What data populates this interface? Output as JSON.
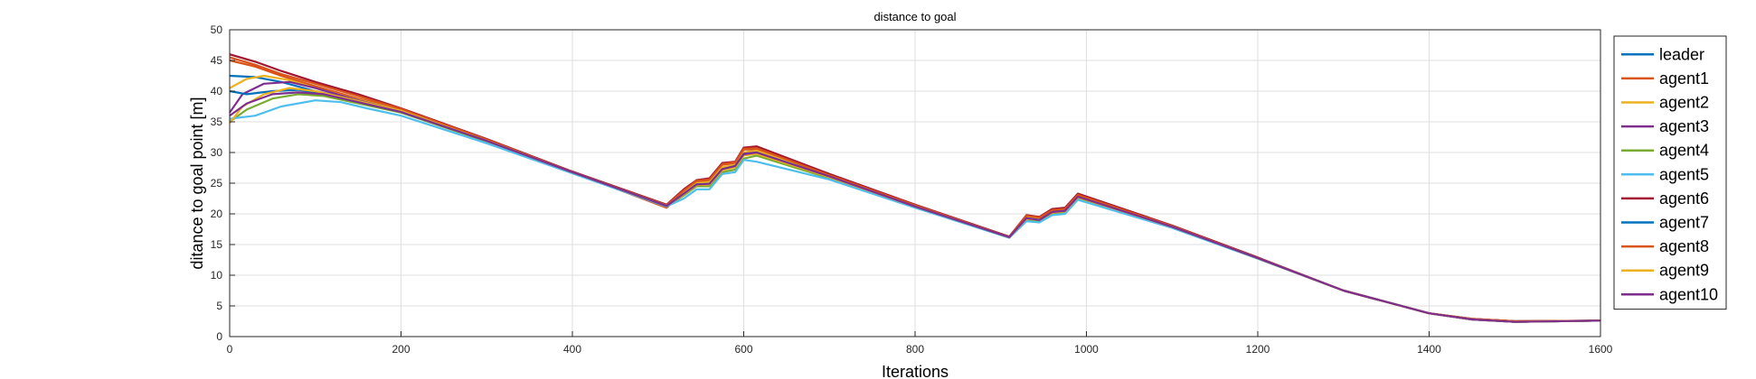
{
  "chart_data": {
    "type": "line",
    "title": "distance to goal",
    "xlabel": "Iterations",
    "ylabel": "ditance to goal point [m]",
    "xlim": [
      0,
      1600
    ],
    "ylim": [
      0,
      50
    ],
    "xticks": [
      0,
      200,
      400,
      600,
      800,
      1000,
      1200,
      1400,
      1600
    ],
    "yticks": [
      0,
      5,
      10,
      15,
      20,
      25,
      30,
      35,
      40,
      45,
      50
    ],
    "grid": true,
    "legend_position": "right-outside",
    "series": [
      {
        "name": "leader",
        "color": "#0072BD",
        "x": [
          0,
          30,
          60,
          100,
          150,
          200,
          300,
          400,
          510,
          530,
          545,
          560,
          575,
          590,
          600,
          615,
          700,
          800,
          910,
          930,
          945,
          960,
          975,
          990,
          1100,
          1200,
          1300,
          1400,
          1450,
          1500,
          1600
        ],
        "y": [
          42.5,
          42.3,
          41.5,
          40.0,
          38.5,
          36.8,
          32.0,
          26.8,
          21.3,
          23.5,
          25.0,
          25.0,
          27.5,
          28.0,
          30.0,
          30.3,
          26.2,
          21.3,
          16.2,
          19.5,
          19.2,
          20.5,
          20.7,
          23.0,
          18.0,
          12.8,
          7.5,
          3.8,
          2.9,
          2.5,
          2.6
        ]
      },
      {
        "name": "agent1",
        "color": "#D95319",
        "x": [
          0,
          30,
          60,
          100,
          150,
          200,
          300,
          400,
          510,
          530,
          545,
          560,
          575,
          590,
          600,
          615,
          700,
          800,
          910,
          930,
          945,
          960,
          975,
          990,
          1100,
          1200,
          1300,
          1400,
          1450,
          1500,
          1600
        ],
        "y": [
          45.0,
          44.0,
          42.5,
          40.8,
          38.8,
          37.0,
          32.0,
          26.8,
          21.0,
          23.5,
          25.3,
          25.5,
          28.0,
          28.3,
          30.5,
          30.5,
          26.2,
          21.3,
          16.2,
          19.6,
          19.3,
          20.5,
          20.7,
          23.0,
          18.0,
          12.8,
          7.5,
          3.8,
          2.8,
          2.4,
          2.6
        ]
      },
      {
        "name": "agent2",
        "color": "#EDB120",
        "x": [
          0,
          20,
          40,
          70,
          100,
          150,
          200,
          300,
          400,
          510,
          530,
          545,
          560,
          575,
          590,
          600,
          615,
          700,
          800,
          910,
          930,
          945,
          960,
          975,
          990,
          1100,
          1200,
          1300,
          1400,
          1450,
          1500,
          1600
        ],
        "y": [
          40.5,
          42.0,
          42.5,
          41.8,
          40.5,
          38.6,
          36.9,
          32.0,
          26.8,
          21.3,
          23.5,
          25.0,
          25.2,
          27.6,
          28.0,
          30.0,
          30.3,
          26.2,
          21.3,
          16.2,
          19.5,
          19.2,
          20.5,
          20.7,
          23.0,
          18.0,
          12.8,
          7.5,
          3.8,
          2.8,
          2.4,
          2.6
        ]
      },
      {
        "name": "agent3",
        "color": "#7E2F8E",
        "x": [
          0,
          15,
          40,
          70,
          100,
          150,
          200,
          300,
          400,
          510,
          530,
          545,
          560,
          575,
          590,
          600,
          615,
          700,
          800,
          910,
          930,
          945,
          960,
          975,
          990,
          1100,
          1200,
          1300,
          1400,
          1450,
          1500,
          1600
        ],
        "y": [
          36.5,
          39.5,
          41.2,
          41.5,
          40.5,
          38.5,
          36.8,
          32.0,
          26.8,
          21.3,
          23.2,
          24.8,
          24.8,
          27.2,
          27.8,
          29.8,
          30.0,
          26.1,
          21.2,
          16.2,
          19.3,
          19.0,
          20.3,
          20.5,
          22.8,
          17.9,
          12.8,
          7.5,
          3.8,
          2.8,
          2.4,
          2.6
        ]
      },
      {
        "name": "agent4",
        "color": "#77AC30",
        "x": [
          0,
          20,
          50,
          80,
          110,
          150,
          200,
          300,
          400,
          510,
          530,
          545,
          560,
          575,
          590,
          600,
          615,
          700,
          800,
          910,
          930,
          945,
          960,
          975,
          990,
          1100,
          1200,
          1300,
          1400,
          1450,
          1500,
          1600
        ],
        "y": [
          35.0,
          37.0,
          38.8,
          39.5,
          39.2,
          38.0,
          36.5,
          31.8,
          26.7,
          21.2,
          23.0,
          24.5,
          24.5,
          26.8,
          27.2,
          29.0,
          29.5,
          25.8,
          21.1,
          16.1,
          19.0,
          18.8,
          20.0,
          20.2,
          22.6,
          17.8,
          12.7,
          7.5,
          3.8,
          2.8,
          2.4,
          2.6
        ]
      },
      {
        "name": "agent5",
        "color": "#4DBEEE",
        "x": [
          0,
          30,
          60,
          100,
          130,
          160,
          200,
          300,
          400,
          510,
          530,
          545,
          560,
          575,
          590,
          600,
          615,
          700,
          800,
          910,
          930,
          945,
          960,
          975,
          990,
          1100,
          1200,
          1300,
          1400,
          1450,
          1500,
          1600
        ],
        "y": [
          35.5,
          36.0,
          37.5,
          38.5,
          38.2,
          37.2,
          36.0,
          31.5,
          26.6,
          21.2,
          22.5,
          24.0,
          24.0,
          26.5,
          26.8,
          28.8,
          28.5,
          25.6,
          21.0,
          16.1,
          18.8,
          18.6,
          19.8,
          20.0,
          22.3,
          17.7,
          12.7,
          7.5,
          3.8,
          2.8,
          2.4,
          2.6
        ]
      },
      {
        "name": "agent6",
        "color": "#A2142F",
        "x": [
          0,
          30,
          60,
          100,
          150,
          200,
          300,
          400,
          510,
          530,
          545,
          560,
          575,
          590,
          600,
          615,
          700,
          800,
          910,
          930,
          945,
          960,
          975,
          990,
          1100,
          1200,
          1300,
          1400,
          1450,
          1500,
          1600
        ],
        "y": [
          46.0,
          44.8,
          43.3,
          41.5,
          39.5,
          37.2,
          32.2,
          26.9,
          21.5,
          24.0,
          25.5,
          25.8,
          28.3,
          28.5,
          30.8,
          31.0,
          26.5,
          21.5,
          16.3,
          19.8,
          19.5,
          20.8,
          21.0,
          23.3,
          18.1,
          12.9,
          7.5,
          3.8,
          2.9,
          2.5,
          2.6
        ]
      },
      {
        "name": "agent7",
        "color": "#0072BD",
        "x": [
          0,
          20,
          50,
          80,
          110,
          150,
          200,
          300,
          400,
          510,
          530,
          545,
          560,
          575,
          590,
          600,
          615,
          700,
          800,
          910,
          930,
          945,
          960,
          975,
          990,
          1100,
          1200,
          1300,
          1400,
          1450,
          1500,
          1600
        ],
        "y": [
          40.0,
          39.5,
          40.0,
          40.2,
          39.5,
          38.3,
          36.7,
          31.9,
          26.8,
          21.3,
          23.3,
          24.8,
          24.9,
          27.3,
          27.8,
          29.7,
          30.0,
          26.1,
          21.2,
          16.2,
          19.3,
          19.0,
          20.3,
          20.5,
          22.8,
          17.9,
          12.8,
          7.5,
          3.8,
          2.8,
          2.4,
          2.6
        ]
      },
      {
        "name": "agent8",
        "color": "#D95319",
        "x": [
          0,
          30,
          60,
          100,
          150,
          200,
          300,
          400,
          510,
          530,
          545,
          560,
          575,
          590,
          600,
          615,
          700,
          800,
          910,
          930,
          945,
          960,
          975,
          990,
          1100,
          1200,
          1300,
          1400,
          1450,
          1500,
          1600
        ],
        "y": [
          45.5,
          44.3,
          42.8,
          41.2,
          39.2,
          37.1,
          32.1,
          26.8,
          21.4,
          23.8,
          25.4,
          25.6,
          28.1,
          28.4,
          30.6,
          30.7,
          26.3,
          21.4,
          16.2,
          19.7,
          19.4,
          20.6,
          20.8,
          23.1,
          18.0,
          12.8,
          7.5,
          3.8,
          2.9,
          2.5,
          2.6
        ]
      },
      {
        "name": "agent9",
        "color": "#EDB120",
        "x": [
          0,
          15,
          40,
          70,
          100,
          150,
          200,
          300,
          400,
          510,
          530,
          545,
          560,
          575,
          590,
          600,
          615,
          700,
          800,
          910,
          930,
          945,
          960,
          975,
          990,
          1100,
          1200,
          1300,
          1400,
          1450,
          1500,
          1600
        ],
        "y": [
          34.8,
          37.5,
          39.5,
          40.5,
          40.0,
          38.4,
          36.8,
          31.9,
          26.8,
          21.3,
          23.2,
          24.7,
          24.8,
          27.1,
          27.6,
          29.5,
          29.8,
          26.0,
          21.2,
          16.2,
          19.2,
          19.0,
          20.2,
          20.4,
          22.7,
          17.9,
          12.8,
          7.5,
          3.8,
          2.8,
          2.4,
          2.6
        ]
      },
      {
        "name": "agent10",
        "color": "#7E2F8E",
        "x": [
          0,
          20,
          50,
          80,
          110,
          150,
          200,
          300,
          400,
          510,
          530,
          545,
          560,
          575,
          590,
          600,
          615,
          700,
          800,
          910,
          930,
          945,
          960,
          975,
          990,
          1100,
          1200,
          1300,
          1400,
          1450,
          1500,
          1600
        ],
        "y": [
          36.0,
          38.0,
          39.5,
          39.8,
          39.5,
          38.2,
          36.6,
          31.9,
          26.8,
          21.3,
          23.3,
          24.8,
          24.9,
          27.3,
          27.8,
          29.7,
          30.0,
          26.1,
          21.2,
          16.2,
          19.3,
          19.0,
          20.3,
          20.5,
          22.8,
          17.9,
          12.8,
          7.5,
          3.8,
          2.8,
          2.4,
          2.6
        ]
      }
    ]
  }
}
